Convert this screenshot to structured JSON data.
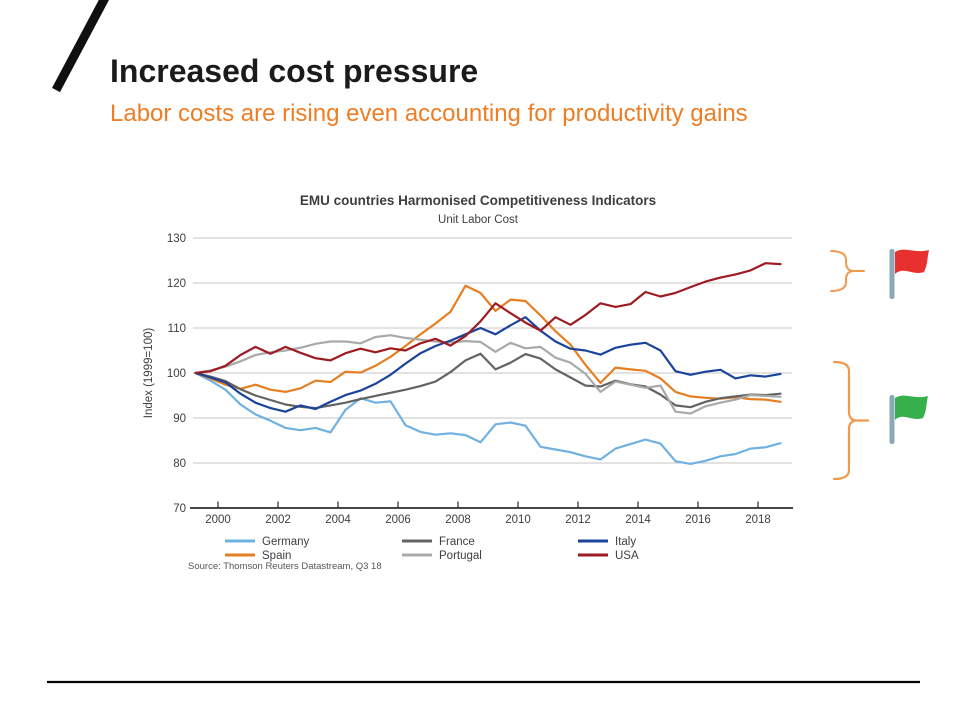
{
  "slide": {
    "title": "Increased cost pressure",
    "subtitle": "Labor costs are rising even accounting for productivity gains",
    "title_color": "#1b1b1b",
    "subtitle_color": "#ee7d23"
  },
  "chart_data": {
    "type": "line",
    "title": "EMU countries Harmonised Competitiveness Indicators",
    "subtitle": "Unit Labor Cost",
    "ylabel": "Index (1999=100)",
    "source": "Source: Thomson Reuters Datastream, Q3 18",
    "ylim": [
      70,
      130
    ],
    "yticks": [
      70,
      80,
      90,
      100,
      110,
      120,
      130
    ],
    "xticks": [
      2000,
      2002,
      2004,
      2006,
      2008,
      2010,
      2012,
      2014,
      2016,
      2018
    ],
    "xlim": [
      1999.2,
      2019.1
    ],
    "grid": true,
    "legend_position": "bottom",
    "legend_columns": [
      [
        "Germany",
        "Spain"
      ],
      [
        "France",
        "Portugal"
      ],
      [
        "Italy",
        "USA"
      ]
    ],
    "x": [
      1999.25,
      1999.75,
      2000.25,
      2000.75,
      2001.25,
      2001.75,
      2002.25,
      2002.75,
      2003.25,
      2003.75,
      2004.25,
      2004.75,
      2005.25,
      2005.75,
      2006.25,
      2006.75,
      2007.25,
      2007.75,
      2008.25,
      2008.75,
      2009.25,
      2009.75,
      2010.25,
      2010.75,
      2011.25,
      2011.75,
      2012.25,
      2012.75,
      2013.25,
      2013.75,
      2014.25,
      2014.75,
      2015.25,
      2015.75,
      2016.25,
      2016.75,
      2017.25,
      2017.75,
      2018.25,
      2018.75
    ],
    "series": [
      {
        "name": "Germany",
        "color": "#6fb1e0",
        "values": [
          100,
          98.3,
          96.3,
          93,
          90.8,
          89.4,
          87.8,
          87.3,
          87.8,
          86.8,
          91.8,
          94.4,
          93.4,
          93.7,
          88.4,
          86.9,
          86.3,
          86.6,
          86.2,
          84.6,
          88.6,
          89,
          88.3,
          83.6,
          83,
          82.4,
          81.5,
          80.8,
          83.2,
          84.2,
          85.2,
          84.3,
          80.4,
          79.8,
          80.5,
          81.5,
          82,
          83.2,
          83.5,
          84.4
        ]
      },
      {
        "name": "Spain",
        "color": "#e67e22",
        "values": [
          100,
          98.8,
          97.4,
          96.5,
          97.4,
          96.3,
          95.8,
          96.6,
          98.3,
          98,
          100.3,
          100.1,
          101.6,
          103.6,
          106,
          108.6,
          111,
          113.6,
          119.4,
          117.8,
          113.8,
          116.3,
          116,
          112.8,
          109.3,
          106.3,
          101.8,
          97.8,
          101.2,
          100.8,
          100.5,
          98.8,
          95.8,
          94.8,
          94.5,
          94.3,
          94.6,
          94.2,
          94.1,
          93.6
        ]
      },
      {
        "name": "France",
        "color": "#636363",
        "values": [
          100,
          99.2,
          98.2,
          96.4,
          95,
          94,
          93,
          92.5,
          92.2,
          92.8,
          93.4,
          94.2,
          94.9,
          95.6,
          96.3,
          97.1,
          98.1,
          100.2,
          102.8,
          104.3,
          100.8,
          102.3,
          104.2,
          103.2,
          100.8,
          99,
          97.2,
          97,
          98.3,
          97.5,
          97,
          95.2,
          92.8,
          92.4,
          93.6,
          94.4,
          94.8,
          95.2,
          95.1,
          95.4
        ]
      },
      {
        "name": "Portugal",
        "color": "#a9a9a9",
        "values": [
          100,
          100.6,
          101.4,
          102.6,
          104,
          104.6,
          105,
          105.6,
          106.5,
          107,
          107,
          106.6,
          108,
          108.4,
          107.8,
          107.4,
          107,
          106.8,
          107.1,
          106.9,
          104.7,
          106.7,
          105.5,
          105.8,
          103.4,
          102.3,
          99.8,
          95.8,
          98.1,
          97.4,
          96.7,
          97.2,
          91.4,
          91,
          92.6,
          93.4,
          94.1,
          95.1,
          94.9,
          94.7
        ]
      },
      {
        "name": "Italy",
        "color": "#1a449b",
        "values": [
          100,
          99,
          97.9,
          95.4,
          93.4,
          92.2,
          91.4,
          92.8,
          92,
          93.6,
          95.1,
          96.1,
          97.6,
          99.6,
          102.1,
          104.4,
          106,
          107.2,
          108.6,
          110,
          108.6,
          110.6,
          112.4,
          109.4,
          107,
          105.4,
          105,
          104.1,
          105.6,
          106.3,
          106.7,
          105,
          100.4,
          99.6,
          100.3,
          100.7,
          98.8,
          99.5,
          99.2,
          99.8
        ]
      },
      {
        "name": "USA",
        "color": "#9e1b22",
        "values": [
          100,
          100.4,
          101.6,
          104,
          105.8,
          104.3,
          105.8,
          104.5,
          103.3,
          102.8,
          104.4,
          105.4,
          104.6,
          105.5,
          105,
          106.6,
          107.6,
          106.1,
          108.2,
          111.5,
          115.5,
          113.3,
          111.2,
          109.4,
          112.4,
          110.7,
          112.9,
          115.5,
          114.7,
          115.3,
          118,
          117,
          117.8,
          119.1,
          120.3,
          121.2,
          121.9,
          122.8,
          124.4,
          124.2
        ]
      }
    ]
  },
  "annotations": {
    "brace_color": "#ef9a4f",
    "pole_color": "#8aa8b8",
    "flags": [
      {
        "icon": "red-flag",
        "color": "#e8312e"
      },
      {
        "icon": "green-flag",
        "color": "#35b04a"
      }
    ]
  }
}
